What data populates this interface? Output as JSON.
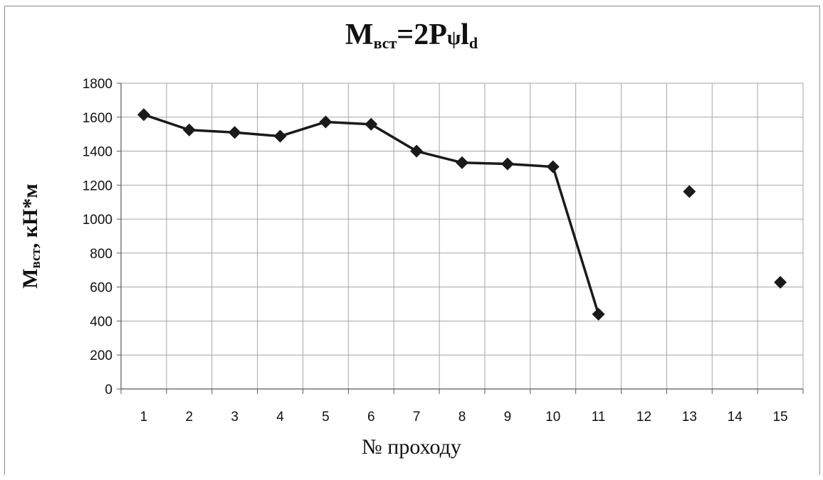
{
  "chart_data": {
    "type": "line",
    "title": {
      "main": "M",
      "sub1": "вст",
      "mid": "=2P",
      "psi": "ψ",
      "l": "l",
      "sub2": "d"
    },
    "xlabel": "№ проходу",
    "ylabel": {
      "main": "M",
      "sub": "вст",
      "rest": ", кН*м"
    },
    "categories": [
      "1",
      "2",
      "3",
      "4",
      "5",
      "6",
      "7",
      "8",
      "9",
      "10",
      "11",
      "12",
      "13",
      "14",
      "15"
    ],
    "values": [
      1615,
      1525,
      1510,
      1488,
      1572,
      1558,
      1400,
      1332,
      1325,
      1308,
      440,
      null,
      1162,
      null,
      628
    ],
    "connected_through_index": 10,
    "ylim": [
      0,
      1800
    ],
    "yticks": [
      0,
      200,
      400,
      600,
      800,
      1000,
      1200,
      1400,
      1600,
      1800
    ],
    "grid": true,
    "marker": "diamond",
    "line_color": "#1a1a1a",
    "grid_color": "#a6a6a6"
  }
}
